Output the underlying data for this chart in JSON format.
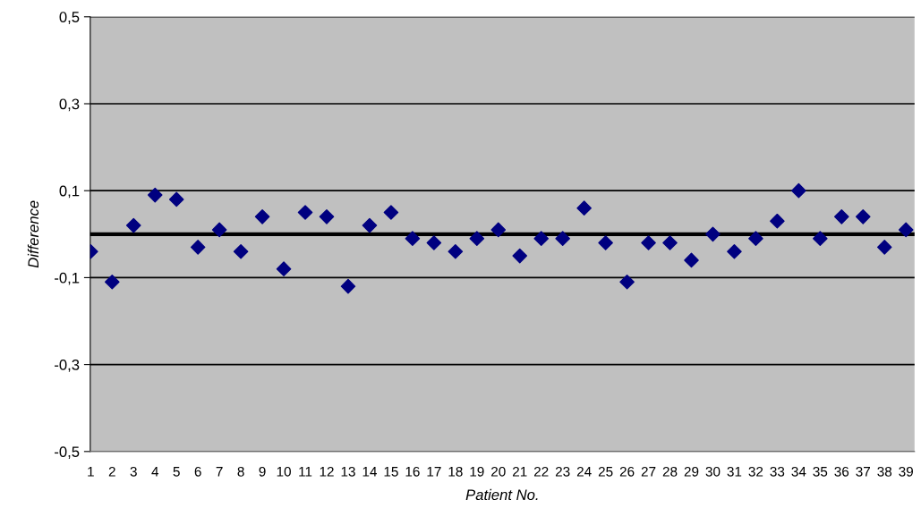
{
  "chart_data": {
    "type": "scatter",
    "xlabel": "Patient No.",
    "ylabel": "Difference",
    "categories": [
      "1",
      "2",
      "3",
      "4",
      "5",
      "6",
      "7",
      "8",
      "9",
      "10",
      "11",
      "12",
      "13",
      "14",
      "15",
      "16",
      "17",
      "18",
      "19",
      "20",
      "21",
      "22",
      "23",
      "24",
      "25",
      "26",
      "27",
      "28",
      "29",
      "30",
      "31",
      "32",
      "33",
      "34",
      "35",
      "36",
      "37",
      "38",
      "39"
    ],
    "series": [
      {
        "color": "#000080",
        "values": [
          -0.04,
          -0.11,
          0.02,
          0.09,
          0.08,
          -0.03,
          0.01,
          -0.04,
          0.04,
          -0.08,
          0.05,
          0.04,
          -0.12,
          0.02,
          0.05,
          -0.01,
          -0.02,
          -0.04,
          -0.01,
          0.01,
          -0.05,
          -0.01,
          -0.01,
          0.06,
          -0.02,
          -0.11,
          -0.02,
          -0.02,
          -0.06,
          0.0,
          -0.04,
          -0.01,
          0.03,
          0.1,
          -0.01,
          0.04,
          0.04,
          -0.03,
          0.01
        ]
      }
    ],
    "ylim": [
      -0.5,
      0.5
    ],
    "yticks": [
      {
        "value": -0.5,
        "label": "-0,5"
      },
      {
        "value": -0.3,
        "label": "-0,3"
      },
      {
        "value": -0.1,
        "label": "-0,1"
      },
      {
        "value": 0.1,
        "label": "0,1"
      },
      {
        "value": 0.3,
        "label": "0,3"
      },
      {
        "value": 0.5,
        "label": "0,5"
      }
    ],
    "ref_lines": [
      {
        "axis": "y",
        "value": 0,
        "color": "#000000"
      }
    ],
    "grid": "y",
    "marker": "diamond",
    "legend": false
  }
}
